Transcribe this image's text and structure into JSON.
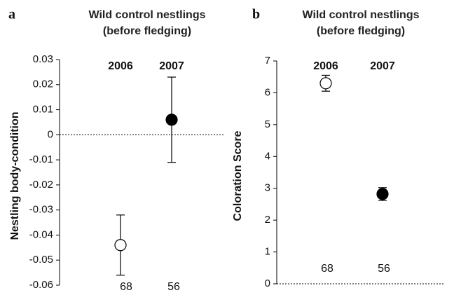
{
  "chart_data": [
    {
      "type": "errorbar",
      "panel_label": "a",
      "title": "Wild control nestlings",
      "subtitle": "(before fledging)",
      "y_label": "Nestling body-condition",
      "categories": [
        "2006",
        "2007"
      ],
      "values": [
        -0.044,
        0.006
      ],
      "errors": [
        0.012,
        0.017
      ],
      "sample_sizes": [
        68,
        56
      ],
      "colors": [
        "#ffffff",
        "#000000"
      ],
      "ylim": [
        -0.06,
        0.03
      ],
      "yticks": [
        -0.06,
        -0.05,
        -0.04,
        -0.03,
        -0.02,
        -0.01,
        0,
        0.01,
        0.02,
        0.03
      ],
      "reference_line": 0
    },
    {
      "type": "errorbar",
      "panel_label": "b",
      "title": "Wild control nestlings",
      "subtitle": "(before fledging)",
      "y_label": "Coloration Score",
      "categories": [
        "2006",
        "2007"
      ],
      "values": [
        6.3,
        2.82
      ],
      "errors": [
        0.25,
        0.2
      ],
      "sample_sizes": [
        68,
        56
      ],
      "colors": [
        "#ffffff",
        "#000000"
      ],
      "ylim": [
        0,
        7
      ],
      "yticks": [
        0,
        1,
        2,
        3,
        4,
        5,
        6,
        7
      ],
      "reference_line": 0
    }
  ]
}
